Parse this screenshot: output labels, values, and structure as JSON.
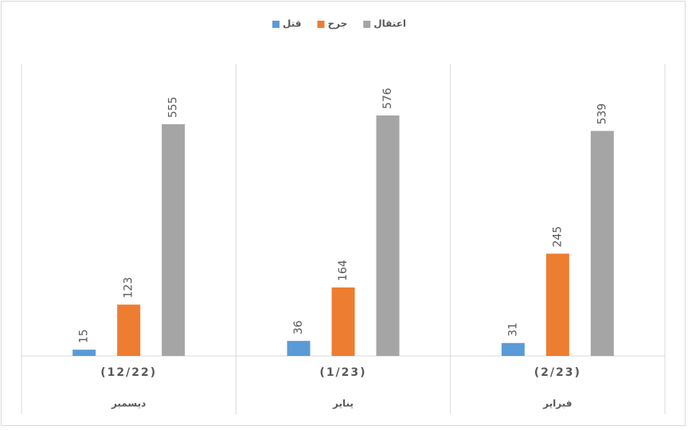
{
  "chart_data": {
    "type": "bar",
    "categories": [
      "(12/22)",
      "(1/23)",
      "(2/23)"
    ],
    "groups": [
      "ديسمبر",
      "يناير",
      "فبراير"
    ],
    "series": [
      {
        "name": "قتل",
        "color": "#5b9bd5",
        "values": [
          15,
          36,
          31
        ]
      },
      {
        "name": "جرح",
        "color": "#ed7d31",
        "values": [
          123,
          164,
          245
        ]
      },
      {
        "name": "اعتقال",
        "color": "#a5a5a5",
        "values": [
          555,
          576,
          539
        ]
      }
    ],
    "ylim": [
      0,
      700
    ]
  }
}
